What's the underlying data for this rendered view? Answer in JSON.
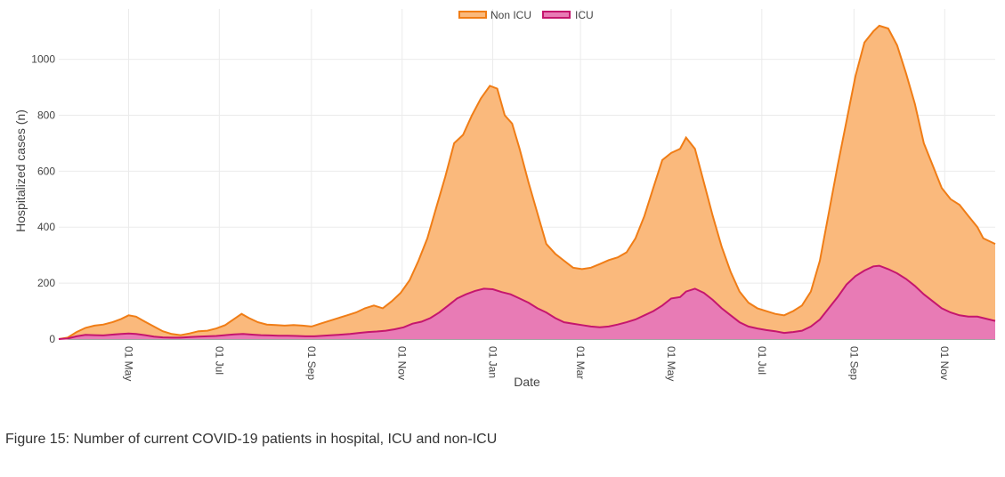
{
  "caption": "Figure 15: Number of current COVID-19 patients in hospital, ICU and non-ICU",
  "colors": {
    "non_icu_fill": "#fab97c",
    "non_icu_line": "#f07d16",
    "icu_fill": "#e87bb5",
    "icu_line": "#c5166e",
    "grid": "#ebebeb"
  },
  "chart_data": {
    "type": "area",
    "stacked": true,
    "title": "",
    "xlabel": "Date",
    "ylabel": "Hospitalized cases (n)",
    "ylim": [
      0,
      1180
    ],
    "yticks": [
      0,
      200,
      400,
      600,
      800,
      1000
    ],
    "x_index_range": [
      0,
      630
    ],
    "xticks": [
      {
        "label": "01 May",
        "index": 47
      },
      {
        "label": "01 Jul",
        "index": 108
      },
      {
        "label": "01 Sep",
        "index": 170
      },
      {
        "label": "01 Nov",
        "index": 231
      },
      {
        "label": "01 Jan",
        "index": 292
      },
      {
        "label": "01 Mar",
        "index": 351
      },
      {
        "label": "01 May",
        "index": 412
      },
      {
        "label": "01 Jul",
        "index": 473
      },
      {
        "label": "01 Sep",
        "index": 535
      },
      {
        "label": "01 Nov",
        "index": 596
      }
    ],
    "legend": {
      "position": "top-center"
    },
    "series": [
      {
        "name": "Non ICU",
        "description": "total hospitalized (Non ICU stacked on ICU), keyed by day index",
        "points": [
          [
            0,
            0
          ],
          [
            6,
            5
          ],
          [
            12,
            25
          ],
          [
            18,
            40
          ],
          [
            24,
            48
          ],
          [
            30,
            52
          ],
          [
            36,
            60
          ],
          [
            42,
            72
          ],
          [
            47,
            85
          ],
          [
            52,
            80
          ],
          [
            58,
            62
          ],
          [
            64,
            45
          ],
          [
            70,
            28
          ],
          [
            76,
            18
          ],
          [
            82,
            14
          ],
          [
            88,
            20
          ],
          [
            94,
            28
          ],
          [
            100,
            30
          ],
          [
            106,
            38
          ],
          [
            112,
            50
          ],
          [
            118,
            72
          ],
          [
            123,
            90
          ],
          [
            128,
            75
          ],
          [
            134,
            60
          ],
          [
            140,
            52
          ],
          [
            146,
            50
          ],
          [
            152,
            48
          ],
          [
            158,
            50
          ],
          [
            164,
            48
          ],
          [
            170,
            45
          ],
          [
            176,
            55
          ],
          [
            182,
            65
          ],
          [
            188,
            75
          ],
          [
            194,
            85
          ],
          [
            200,
            95
          ],
          [
            206,
            110
          ],
          [
            212,
            120
          ],
          [
            218,
            110
          ],
          [
            224,
            135
          ],
          [
            230,
            165
          ],
          [
            236,
            210
          ],
          [
            242,
            280
          ],
          [
            248,
            360
          ],
          [
            254,
            470
          ],
          [
            260,
            580
          ],
          [
            266,
            700
          ],
          [
            272,
            730
          ],
          [
            278,
            800
          ],
          [
            284,
            860
          ],
          [
            290,
            905
          ],
          [
            295,
            895
          ],
          [
            300,
            800
          ],
          [
            305,
            770
          ],
          [
            310,
            680
          ],
          [
            316,
            560
          ],
          [
            322,
            450
          ],
          [
            328,
            340
          ],
          [
            334,
            305
          ],
          [
            340,
            280
          ],
          [
            346,
            255
          ],
          [
            352,
            250
          ],
          [
            358,
            255
          ],
          [
            364,
            268
          ],
          [
            370,
            282
          ],
          [
            376,
            292
          ],
          [
            382,
            310
          ],
          [
            388,
            360
          ],
          [
            394,
            440
          ],
          [
            400,
            540
          ],
          [
            406,
            640
          ],
          [
            412,
            665
          ],
          [
            418,
            680
          ],
          [
            422,
            720
          ],
          [
            428,
            680
          ],
          [
            434,
            560
          ],
          [
            440,
            440
          ],
          [
            446,
            330
          ],
          [
            452,
            240
          ],
          [
            458,
            170
          ],
          [
            464,
            130
          ],
          [
            470,
            110
          ],
          [
            476,
            100
          ],
          [
            482,
            90
          ],
          [
            488,
            85
          ],
          [
            494,
            100
          ],
          [
            500,
            120
          ],
          [
            506,
            170
          ],
          [
            512,
            280
          ],
          [
            518,
            450
          ],
          [
            524,
            620
          ],
          [
            530,
            780
          ],
          [
            536,
            940
          ],
          [
            542,
            1060
          ],
          [
            548,
            1100
          ],
          [
            552,
            1120
          ],
          [
            558,
            1110
          ],
          [
            564,
            1050
          ],
          [
            570,
            950
          ],
          [
            576,
            840
          ],
          [
            582,
            700
          ],
          [
            588,
            620
          ],
          [
            594,
            540
          ],
          [
            600,
            500
          ],
          [
            606,
            480
          ],
          [
            612,
            440
          ],
          [
            618,
            400
          ],
          [
            622,
            360
          ],
          [
            630,
            340
          ]
        ]
      },
      {
        "name": "ICU",
        "description": "ICU patients, keyed by day index",
        "points": [
          [
            0,
            0
          ],
          [
            6,
            2
          ],
          [
            12,
            10
          ],
          [
            18,
            15
          ],
          [
            24,
            14
          ],
          [
            30,
            13
          ],
          [
            36,
            16
          ],
          [
            42,
            18
          ],
          [
            47,
            20
          ],
          [
            52,
            18
          ],
          [
            58,
            14
          ],
          [
            64,
            9
          ],
          [
            70,
            6
          ],
          [
            76,
            5
          ],
          [
            82,
            5
          ],
          [
            88,
            7
          ],
          [
            94,
            9
          ],
          [
            100,
            10
          ],
          [
            106,
            11
          ],
          [
            112,
            14
          ],
          [
            118,
            17
          ],
          [
            124,
            18
          ],
          [
            130,
            16
          ],
          [
            136,
            14
          ],
          [
            142,
            13
          ],
          [
            148,
            12
          ],
          [
            154,
            12
          ],
          [
            160,
            11
          ],
          [
            166,
            10
          ],
          [
            172,
            10
          ],
          [
            178,
            12
          ],
          [
            184,
            14
          ],
          [
            190,
            16
          ],
          [
            196,
            18
          ],
          [
            202,
            22
          ],
          [
            208,
            25
          ],
          [
            214,
            27
          ],
          [
            220,
            30
          ],
          [
            226,
            35
          ],
          [
            232,
            42
          ],
          [
            238,
            55
          ],
          [
            244,
            62
          ],
          [
            250,
            75
          ],
          [
            256,
            95
          ],
          [
            262,
            120
          ],
          [
            268,
            145
          ],
          [
            274,
            160
          ],
          [
            280,
            172
          ],
          [
            286,
            180
          ],
          [
            292,
            178
          ],
          [
            298,
            168
          ],
          [
            304,
            160
          ],
          [
            310,
            145
          ],
          [
            316,
            130
          ],
          [
            322,
            110
          ],
          [
            328,
            95
          ],
          [
            334,
            75
          ],
          [
            340,
            60
          ],
          [
            346,
            55
          ],
          [
            352,
            50
          ],
          [
            358,
            45
          ],
          [
            364,
            42
          ],
          [
            370,
            45
          ],
          [
            376,
            52
          ],
          [
            382,
            60
          ],
          [
            388,
            70
          ],
          [
            394,
            85
          ],
          [
            400,
            100
          ],
          [
            406,
            120
          ],
          [
            412,
            145
          ],
          [
            418,
            150
          ],
          [
            422,
            170
          ],
          [
            428,
            180
          ],
          [
            434,
            165
          ],
          [
            440,
            140
          ],
          [
            446,
            110
          ],
          [
            452,
            85
          ],
          [
            458,
            60
          ],
          [
            464,
            45
          ],
          [
            470,
            38
          ],
          [
            476,
            32
          ],
          [
            482,
            28
          ],
          [
            488,
            22
          ],
          [
            494,
            25
          ],
          [
            500,
            30
          ],
          [
            506,
            45
          ],
          [
            512,
            70
          ],
          [
            518,
            110
          ],
          [
            524,
            150
          ],
          [
            530,
            195
          ],
          [
            536,
            225
          ],
          [
            542,
            245
          ],
          [
            548,
            260
          ],
          [
            552,
            262
          ],
          [
            558,
            250
          ],
          [
            564,
            235
          ],
          [
            570,
            215
          ],
          [
            576,
            190
          ],
          [
            582,
            160
          ],
          [
            588,
            135
          ],
          [
            594,
            110
          ],
          [
            600,
            95
          ],
          [
            606,
            85
          ],
          [
            612,
            80
          ],
          [
            618,
            80
          ],
          [
            622,
            75
          ],
          [
            630,
            65
          ]
        ]
      }
    ]
  }
}
